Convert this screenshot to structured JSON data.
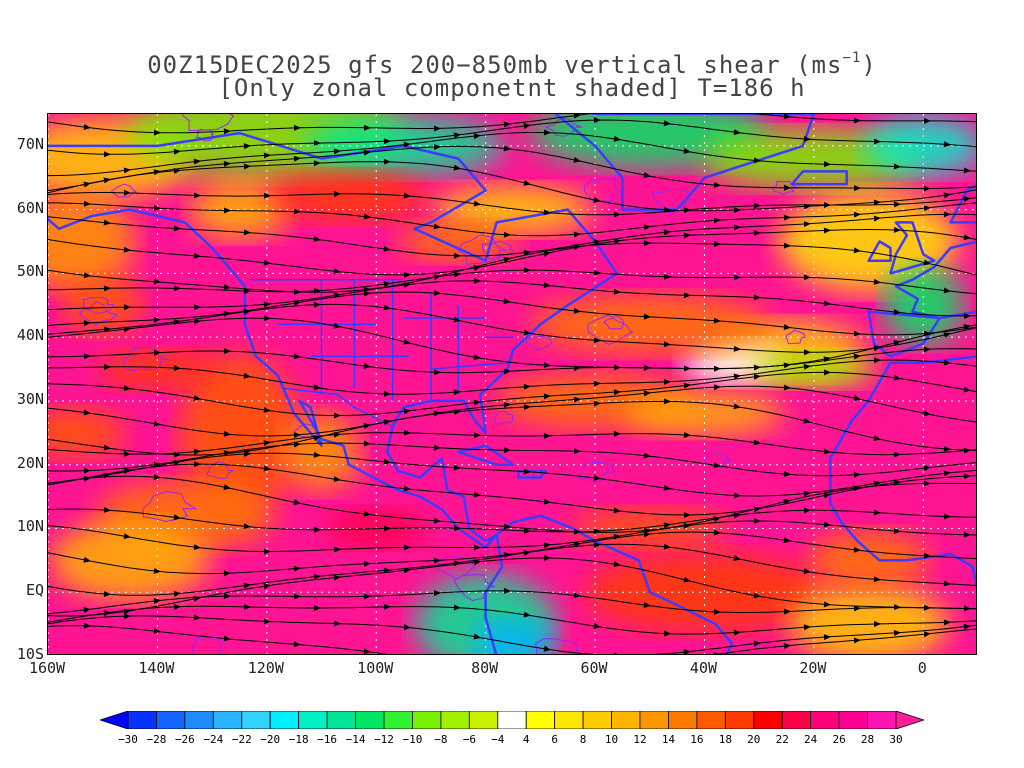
{
  "title": {
    "line1_prefix": "00Z15DEC2025 gfs 200−850mb vertical shear (ms",
    "line1_sup": "−1",
    "line1_suffix": ")",
    "line2": "[Only zonal componetnt shaded] T=186 h"
  },
  "map": {
    "lon_range": [
      -160,
      10
    ],
    "lat_range": [
      -10,
      75
    ],
    "lat_ticks": [
      {
        "value": 70,
        "label": "70N"
      },
      {
        "value": 60,
        "label": "60N"
      },
      {
        "value": 50,
        "label": "50N"
      },
      {
        "value": 40,
        "label": "40N"
      },
      {
        "value": 30,
        "label": "30N"
      },
      {
        "value": 20,
        "label": "20N"
      },
      {
        "value": 10,
        "label": "10N"
      },
      {
        "value": 0,
        "label": "EQ"
      },
      {
        "value": -10,
        "label": "10S"
      }
    ],
    "lon_ticks": [
      {
        "value": -160,
        "label": "160W"
      },
      {
        "value": -140,
        "label": "140W"
      },
      {
        "value": -120,
        "label": "120W"
      },
      {
        "value": -100,
        "label": "100W"
      },
      {
        "value": -80,
        "label": "80W"
      },
      {
        "value": -60,
        "label": "60W"
      },
      {
        "value": -40,
        "label": "40W"
      },
      {
        "value": -20,
        "label": "20W"
      },
      {
        "value": 0,
        "label": "0"
      }
    ],
    "field": "200-850mb vertical shear, zonal component shaded",
    "coastline_color": "#3c3cff",
    "contour_color": "#a020f0",
    "streamline_color": "#000000"
  },
  "colorbar": {
    "labels": [
      "−30",
      "−28",
      "−26",
      "−24",
      "−22",
      "−20",
      "−18",
      "−16",
      "−14",
      "−12",
      "−10",
      "−8",
      "−6",
      "−4",
      "4",
      "6",
      "8",
      "10",
      "12",
      "14",
      "16",
      "18",
      "20",
      "22",
      "24",
      "26",
      "28",
      "30"
    ],
    "colors": [
      "#0000ff",
      "#0a32ff",
      "#1464ff",
      "#1e8cff",
      "#28b4ff",
      "#32d2ff",
      "#00f0ff",
      "#00f0c8",
      "#00e696",
      "#00e664",
      "#32f032",
      "#78f000",
      "#a0f000",
      "#c8f000",
      "#ffffff",
      "#ffff00",
      "#ffe600",
      "#ffcc00",
      "#ffb400",
      "#ff9600",
      "#ff7800",
      "#ff5a00",
      "#ff3c00",
      "#ff0000",
      "#ff0046",
      "#ff0078",
      "#ff0096",
      "#ff14b4",
      "#ff1e96"
    ]
  }
}
